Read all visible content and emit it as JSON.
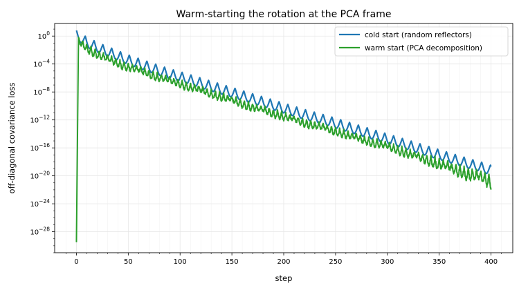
{
  "chart_data": {
    "type": "line",
    "title": "Warm-starting the rotation at the PCA frame",
    "xlabel": "step",
    "ylabel": "off-diagonal covariance loss",
    "xlim": [
      -21,
      421
    ],
    "ylim_log10": [
      -31,
      1.8
    ],
    "y_scale": "log",
    "x_ticks": [
      0,
      50,
      100,
      150,
      200,
      250,
      300,
      350,
      400
    ],
    "x_tick_labels": [
      "0",
      "50",
      "100",
      "150",
      "200",
      "250",
      "300",
      "350",
      "400"
    ],
    "y_ticks_log10": [
      0,
      -4,
      -8,
      -12,
      -16,
      -20,
      -24,
      -28
    ],
    "y_tick_labels": [
      {
        "base": "10",
        "exp": "0"
      },
      {
        "base": "10",
        "exp": "−4"
      },
      {
        "base": "10",
        "exp": "−8"
      },
      {
        "base": "10",
        "exp": "−12"
      },
      {
        "base": "10",
        "exp": "−16"
      },
      {
        "base": "10",
        "exp": "−20"
      },
      {
        "base": "10",
        "exp": "−24"
      },
      {
        "base": "10",
        "exp": "−28"
      }
    ],
    "grid": true,
    "legend_position": "top-right",
    "series": [
      {
        "name": "cold start (random reflectors)",
        "color": "#1f77b4",
        "x": [
          0,
          5,
          10,
          15,
          20,
          25,
          30,
          40,
          50,
          60,
          70,
          80,
          90,
          100,
          120,
          140,
          160,
          180,
          200,
          220,
          240,
          260,
          280,
          300,
          320,
          340,
          360,
          380,
          390,
          400
        ],
        "log10_y": [
          0.8,
          0.4,
          -0.2,
          -0.5,
          -0.9,
          -1.2,
          -1.5,
          -2.1,
          -2.7,
          -3.2,
          -3.7,
          -4.2,
          -4.7,
          -5.1,
          -6.0,
          -6.9,
          -7.8,
          -8.7,
          -9.6,
          -10.5,
          -11.3,
          -12.2,
          -13.1,
          -14.0,
          -14.9,
          -15.8,
          -16.7,
          -17.6,
          -18.0,
          -18.5
        ],
        "oscillation": {
          "period_steps": 8.5,
          "dip_depth_log10": 1.4
        }
      },
      {
        "name": "warm start (PCA decomposition)",
        "color": "#2ca02c",
        "x": [
          0,
          2,
          5,
          10,
          20,
          30,
          40,
          50,
          60,
          70,
          80,
          90,
          100,
          120,
          140,
          160,
          180,
          200,
          220,
          240,
          260,
          280,
          300,
          320,
          340,
          360,
          380,
          390,
          400
        ],
        "log10_y": [
          -29.5,
          0.0,
          -0.4,
          -1.0,
          -1.9,
          -2.6,
          -3.2,
          -3.7,
          -4.2,
          -4.7,
          -5.2,
          -5.7,
          -6.1,
          -7.1,
          -8.0,
          -9.0,
          -9.9,
          -10.8,
          -11.7,
          -12.5,
          -13.4,
          -14.3,
          -15.1,
          -16.0,
          -16.9,
          -17.8,
          -18.7,
          -19.1,
          -19.6
        ],
        "oscillation": {
          "period_steps": 4.0,
          "dip_depth_log10": 1.1
        }
      }
    ]
  }
}
